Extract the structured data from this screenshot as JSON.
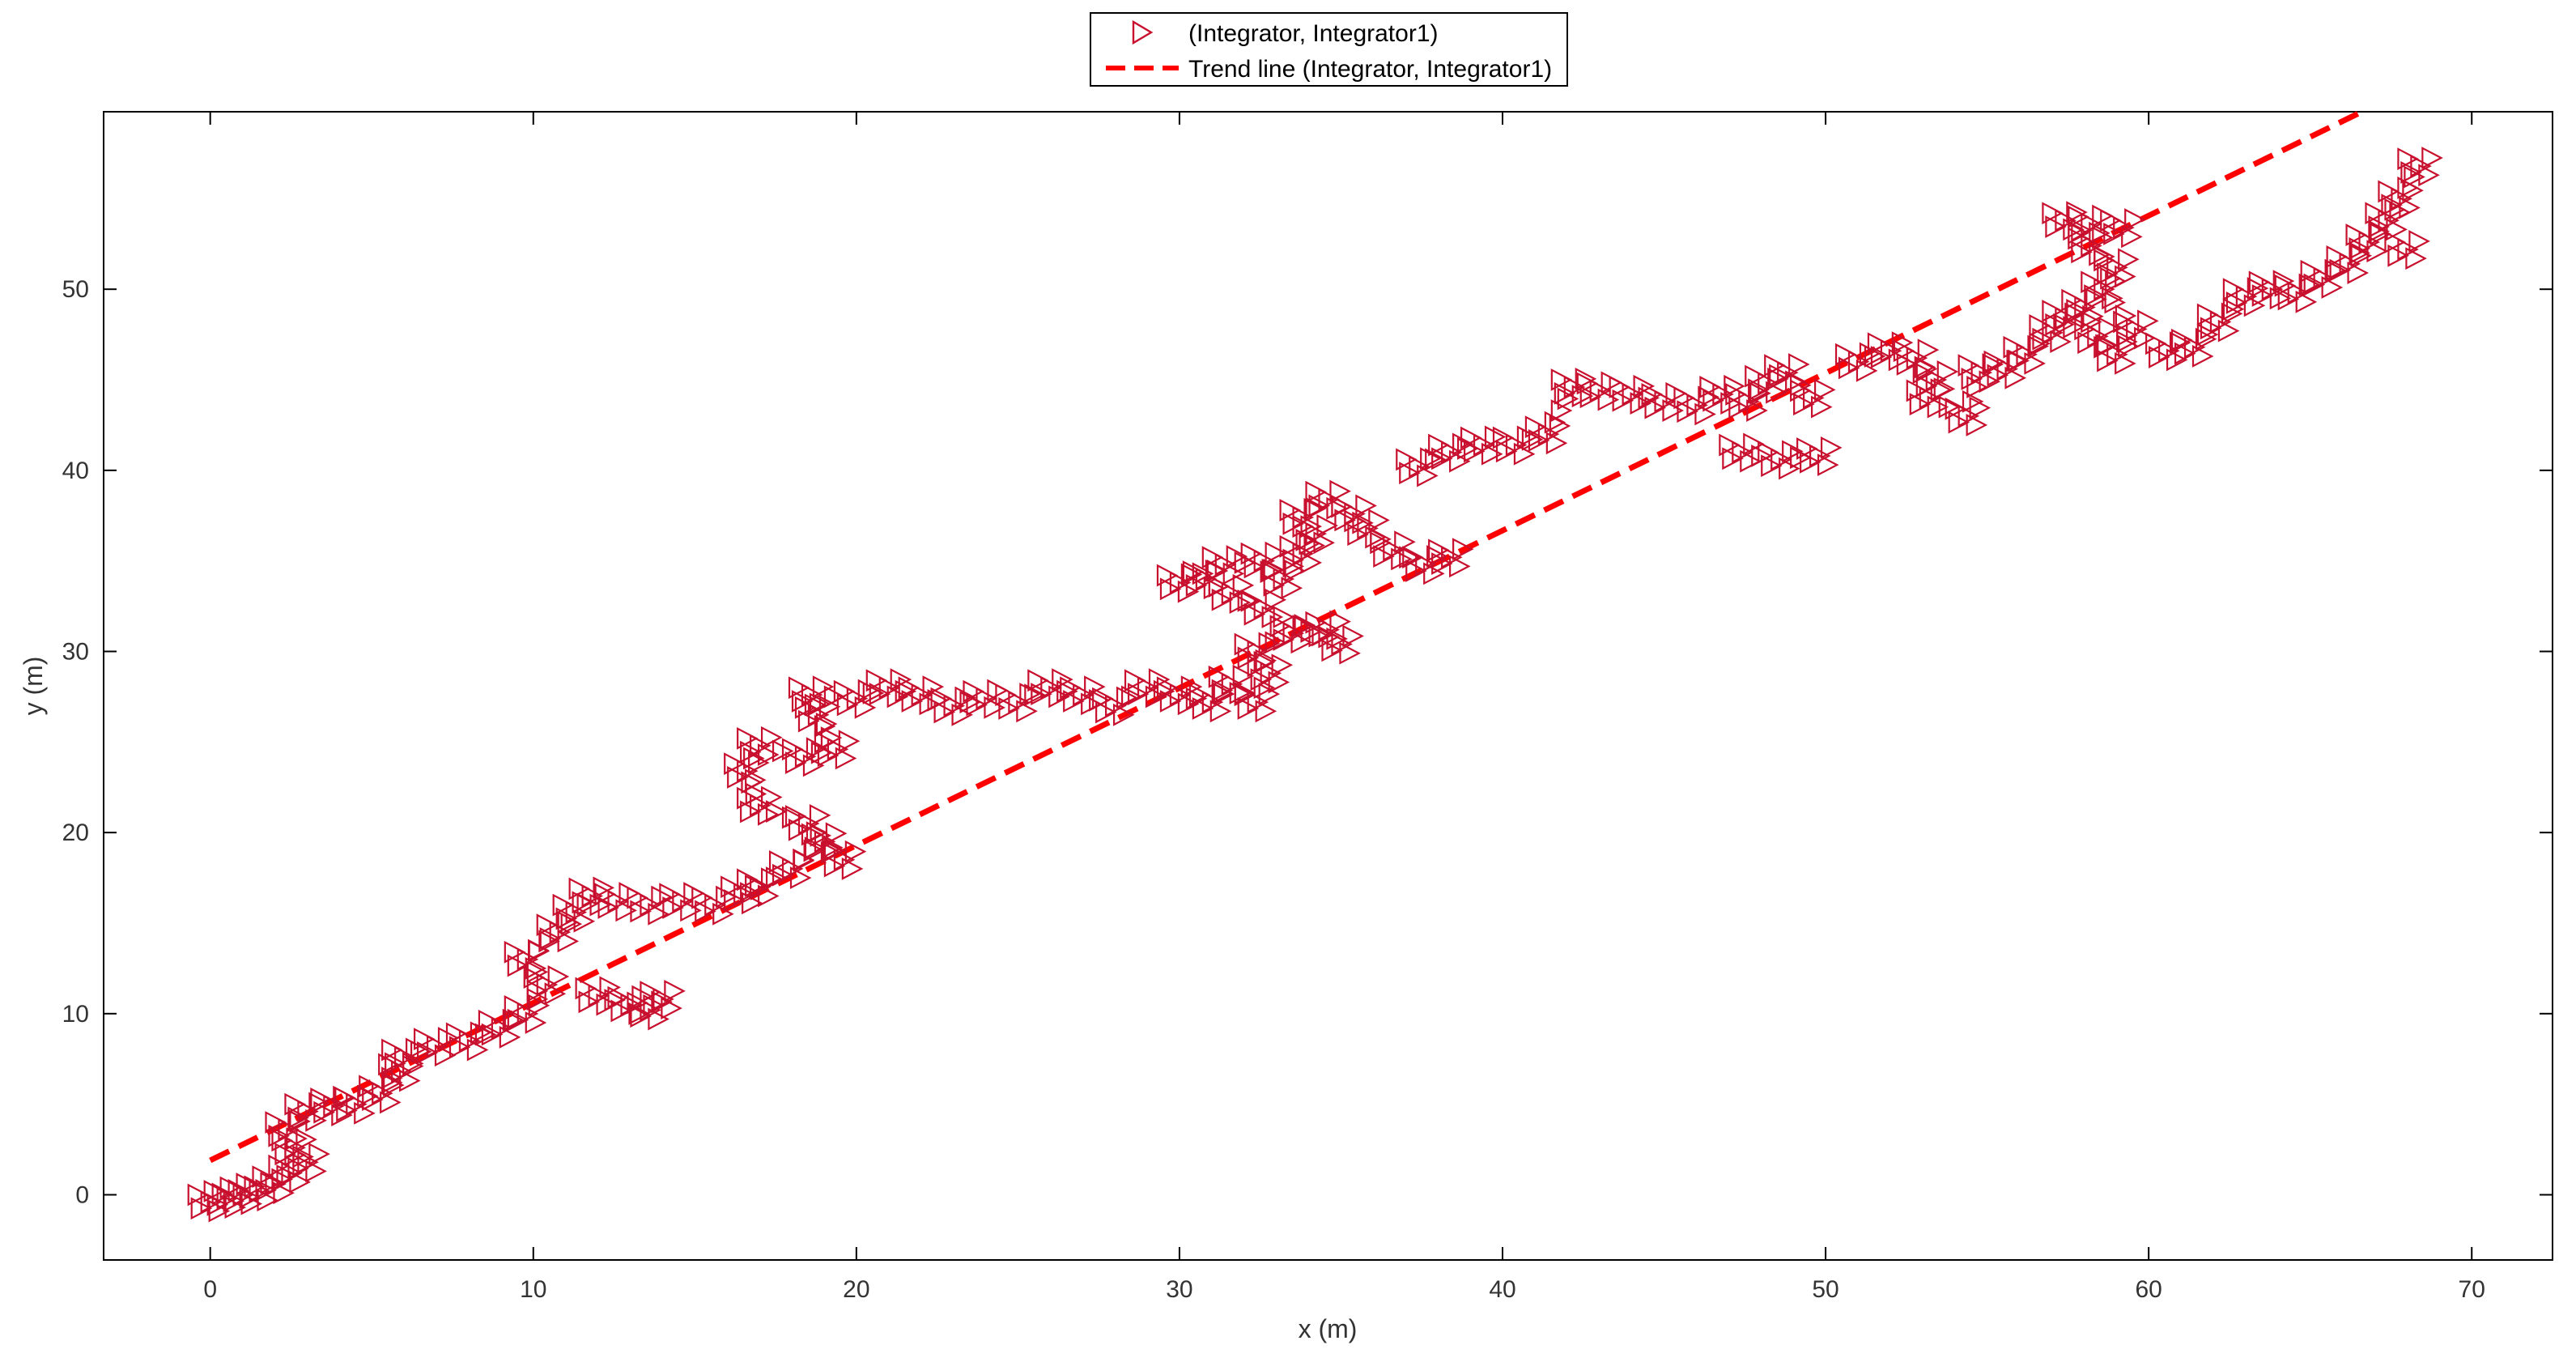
{
  "chart_data": {
    "type": "scatter",
    "title": "",
    "xlabel": "x (m)",
    "ylabel": "y (m)",
    "xlim": [
      -3.3,
      72.5
    ],
    "ylim": [
      -3.6,
      59.8
    ],
    "xticks": [
      0,
      10,
      20,
      30,
      40,
      50,
      60,
      70
    ],
    "yticks": [
      0,
      10,
      20,
      30,
      40,
      50
    ],
    "grid": false,
    "legend_position": "top-center",
    "colors": {
      "marker": "#c8102e",
      "trend": "#ff0000",
      "axis": "#000000"
    },
    "marker_icon": "triangle-right-icon",
    "series": [
      {
        "name": "(Integrator, Integrator1)",
        "kind": "scatter",
        "points": [
          [
            0.0,
            -0.4
          ],
          [
            0.5,
            -0.2
          ],
          [
            1.0,
            0.0
          ],
          [
            1.5,
            0.2
          ],
          [
            2.0,
            0.6
          ],
          [
            2.5,
            1.2
          ],
          [
            3.0,
            1.8
          ],
          [
            2.6,
            2.6
          ],
          [
            2.4,
            3.6
          ],
          [
            3.0,
            4.6
          ],
          [
            3.8,
            4.9
          ],
          [
            4.5,
            5.0
          ],
          [
            5.3,
            5.6
          ],
          [
            5.9,
            6.8
          ],
          [
            6.0,
            7.6
          ],
          [
            7.0,
            8.2
          ],
          [
            8.0,
            8.5
          ],
          [
            9.0,
            9.2
          ],
          [
            9.8,
            10.0
          ],
          [
            10.4,
            11.6
          ],
          [
            9.8,
            13.0
          ],
          [
            10.8,
            14.5
          ],
          [
            11.3,
            15.6
          ],
          [
            11.8,
            16.5
          ],
          [
            12.6,
            16.2
          ],
          [
            13.6,
            16.0
          ],
          [
            14.6,
            16.2
          ],
          [
            15.6,
            16.0
          ],
          [
            12.0,
            11.0
          ],
          [
            13.0,
            10.5
          ],
          [
            13.6,
            10.2
          ],
          [
            14.0,
            10.8
          ],
          [
            16.5,
            16.6
          ],
          [
            17.0,
            17.0
          ],
          [
            18.0,
            18.0
          ],
          [
            19.0,
            19.5
          ],
          [
            19.6,
            18.5
          ],
          [
            18.5,
            20.5
          ],
          [
            17.0,
            21.5
          ],
          [
            16.6,
            23.4
          ],
          [
            17.0,
            24.8
          ],
          [
            18.4,
            24.2
          ],
          [
            19.4,
            24.6
          ],
          [
            18.8,
            26.5
          ],
          [
            18.6,
            27.6
          ],
          [
            20.0,
            27.4
          ],
          [
            21.0,
            28.0
          ],
          [
            22.0,
            27.6
          ],
          [
            23.0,
            27.0
          ],
          [
            24.0,
            27.4
          ],
          [
            25.0,
            27.2
          ],
          [
            26.0,
            28.0
          ],
          [
            27.0,
            27.6
          ],
          [
            28.0,
            27.0
          ],
          [
            29.0,
            28.0
          ],
          [
            30.0,
            27.6
          ],
          [
            31.0,
            27.2
          ],
          [
            31.6,
            28.2
          ],
          [
            32.4,
            27.2
          ],
          [
            32.8,
            28.8
          ],
          [
            32.4,
            30.0
          ],
          [
            33.5,
            31.0
          ],
          [
            34.6,
            31.2
          ],
          [
            35.0,
            30.4
          ],
          [
            32.6,
            32.4
          ],
          [
            31.6,
            33.2
          ],
          [
            30.8,
            34.0
          ],
          [
            30.0,
            33.8
          ],
          [
            31.4,
            34.8
          ],
          [
            32.6,
            35.0
          ],
          [
            33.2,
            34.0
          ],
          [
            33.8,
            35.4
          ],
          [
            34.2,
            36.5
          ],
          [
            33.8,
            37.4
          ],
          [
            34.6,
            38.4
          ],
          [
            35.4,
            37.6
          ],
          [
            35.8,
            36.8
          ],
          [
            36.6,
            35.6
          ],
          [
            37.6,
            34.8
          ],
          [
            38.4,
            35.2
          ],
          [
            37.4,
            40.2
          ],
          [
            38.4,
            41.0
          ],
          [
            39.4,
            41.4
          ],
          [
            40.4,
            41.4
          ],
          [
            41.4,
            42.0
          ],
          [
            42.2,
            44.6
          ],
          [
            43.0,
            44.4
          ],
          [
            44.0,
            44.2
          ],
          [
            45.0,
            43.8
          ],
          [
            46.0,
            43.6
          ],
          [
            46.8,
            44.2
          ],
          [
            47.6,
            43.8
          ],
          [
            48.2,
            44.8
          ],
          [
            48.8,
            45.4
          ],
          [
            49.6,
            44.0
          ],
          [
            47.4,
            41.0
          ],
          [
            48.6,
            40.6
          ],
          [
            49.8,
            40.8
          ],
          [
            51.0,
            46.0
          ],
          [
            52.0,
            46.6
          ],
          [
            52.8,
            46.2
          ],
          [
            53.4,
            45.0
          ],
          [
            53.2,
            44.0
          ],
          [
            54.4,
            43.0
          ],
          [
            54.8,
            45.4
          ],
          [
            55.6,
            45.6
          ],
          [
            56.2,
            46.4
          ],
          [
            57.0,
            47.6
          ],
          [
            57.4,
            48.4
          ],
          [
            58.0,
            49.0
          ],
          [
            58.4,
            47.4
          ],
          [
            59.0,
            46.4
          ],
          [
            59.6,
            47.8
          ],
          [
            58.6,
            50.0
          ],
          [
            59.0,
            51.2
          ],
          [
            58.2,
            52.4
          ],
          [
            57.4,
            53.8
          ],
          [
            58.2,
            53.6
          ],
          [
            59.2,
            53.4
          ],
          [
            60.6,
            46.6
          ],
          [
            61.4,
            46.8
          ],
          [
            62.2,
            48.2
          ],
          [
            63.0,
            49.6
          ],
          [
            63.8,
            50.0
          ],
          [
            64.6,
            49.8
          ],
          [
            65.4,
            50.6
          ],
          [
            66.2,
            51.4
          ],
          [
            66.8,
            52.6
          ],
          [
            67.4,
            53.8
          ],
          [
            67.8,
            55.0
          ],
          [
            68.4,
            56.8
          ],
          [
            68.0,
            52.2
          ]
        ]
      },
      {
        "name": "Trend line (Integrator, Integrator1)",
        "kind": "line",
        "style": "dashed",
        "x": [
          0,
          66.6
        ],
        "y": [
          1.9,
          59.8
        ]
      }
    ]
  }
}
